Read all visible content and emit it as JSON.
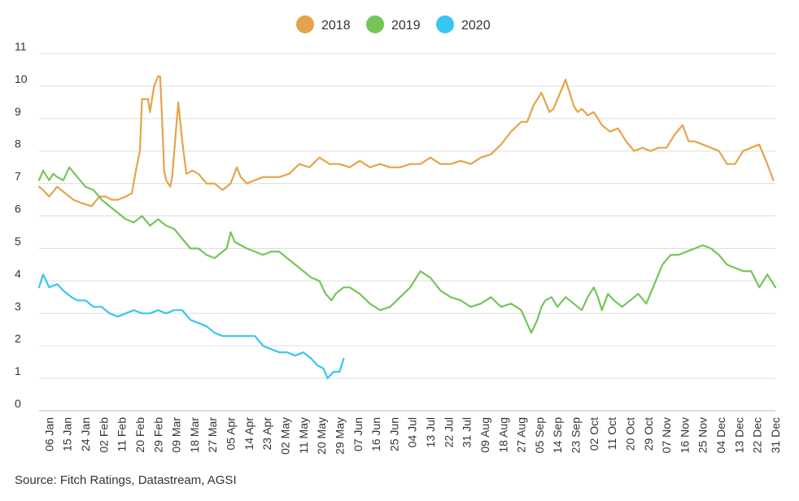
{
  "source": "Source: Fitch Ratings, Datastream, AGSI",
  "chart_data": {
    "type": "line",
    "title": "",
    "xlabel": "",
    "ylabel": "",
    "ylim": [
      0,
      11
    ],
    "yticks": [
      0,
      1,
      2,
      3,
      4,
      5,
      6,
      7,
      8,
      9,
      10,
      11
    ],
    "grid": true,
    "legend_position": "top-center",
    "x_tick_labels": [
      "06 Jan",
      "15 Jan",
      "24 Jan",
      "02 Feb",
      "11 Feb",
      "20 Feb",
      "29 Feb",
      "09 Mar",
      "18 Mar",
      "27 Mar",
      "05 Apr",
      "14 Apr",
      "23 Apr",
      "02 May",
      "11 May",
      "20 May",
      "29 May",
      "07 Jun",
      "16 Jun",
      "25 Jun",
      "04 Jul",
      "13 Jul",
      "22 Jul",
      "31 Jul",
      "09 Aug",
      "18 Aug",
      "27 Aug",
      "05 Sep",
      "14 Sep",
      "23 Sep",
      "02 Oct",
      "11 Oct",
      "20 Oct",
      "29 Oct",
      "07 Nov",
      "16 Nov",
      "25 Nov",
      "04 Dec",
      "13 Dec",
      "22 Dec",
      "31 Dec"
    ],
    "x_tick_days": [
      6,
      15,
      24,
      33,
      42,
      51,
      60,
      69,
      78,
      87,
      96,
      105,
      114,
      123,
      132,
      141,
      150,
      159,
      168,
      177,
      186,
      195,
      204,
      213,
      222,
      231,
      240,
      249,
      258,
      267,
      276,
      285,
      294,
      303,
      312,
      321,
      330,
      339,
      348,
      357,
      366
    ],
    "x_range": [
      1,
      366
    ],
    "series": [
      {
        "name": "2018",
        "color": "#e5a44c",
        "x": [
          1,
          3,
          6,
          10,
          14,
          18,
          22,
          27,
          31,
          34,
          37,
          40,
          44,
          47,
          49,
          51,
          52,
          55,
          56,
          58,
          60,
          61,
          62,
          63,
          64,
          65,
          66,
          67,
          70,
          71,
          72,
          74,
          77,
          80,
          84,
          88,
          92,
          96,
          99,
          101,
          104,
          108,
          112,
          116,
          120,
          125,
          130,
          135,
          140,
          145,
          150,
          155,
          160,
          165,
          170,
          175,
          180,
          185,
          190,
          195,
          200,
          205,
          210,
          215,
          220,
          225,
          230,
          235,
          240,
          243,
          246,
          250,
          254,
          256,
          258,
          260,
          262,
          264,
          266,
          268,
          270,
          273,
          276,
          280,
          284,
          288,
          292,
          296,
          300,
          304,
          308,
          312,
          316,
          320,
          323,
          326,
          330,
          334,
          338,
          342,
          346,
          350,
          354,
          358,
          362,
          365
        ],
        "values": [
          6.9,
          6.8,
          6.6,
          6.9,
          6.7,
          6.5,
          6.4,
          6.3,
          6.6,
          6.6,
          6.5,
          6.5,
          6.6,
          6.7,
          7.4,
          8.0,
          9.6,
          9.6,
          9.2,
          10.0,
          10.3,
          10.3,
          9.0,
          7.4,
          7.1,
          7.0,
          6.9,
          7.2,
          9.5,
          8.9,
          8.3,
          7.3,
          7.4,
          7.3,
          7.0,
          7.0,
          6.8,
          7.0,
          7.5,
          7.2,
          7.0,
          7.1,
          7.2,
          7.2,
          7.2,
          7.3,
          7.6,
          7.5,
          7.8,
          7.6,
          7.6,
          7.5,
          7.7,
          7.5,
          7.6,
          7.5,
          7.5,
          7.6,
          7.6,
          7.8,
          7.6,
          7.6,
          7.7,
          7.6,
          7.8,
          7.9,
          8.2,
          8.6,
          8.9,
          8.9,
          9.4,
          9.8,
          9.2,
          9.3,
          9.6,
          9.9,
          10.2,
          9.8,
          9.4,
          9.2,
          9.3,
          9.1,
          9.2,
          8.8,
          8.6,
          8.7,
          8.3,
          8.0,
          8.1,
          8.0,
          8.1,
          8.1,
          8.5,
          8.8,
          8.3,
          8.3,
          8.2,
          8.1,
          8.0,
          7.6,
          7.6,
          8.0,
          8.1,
          8.2,
          7.6,
          7.1
        ]
      },
      {
        "name": "2019",
        "color": "#74c65a",
        "x": [
          1,
          3,
          6,
          8,
          10,
          13,
          16,
          20,
          24,
          28,
          32,
          36,
          40,
          44,
          48,
          52,
          56,
          60,
          64,
          68,
          72,
          76,
          80,
          84,
          88,
          92,
          94,
          96,
          98,
          101,
          104,
          108,
          112,
          116,
          120,
          124,
          128,
          132,
          136,
          140,
          143,
          146,
          148,
          150,
          152,
          155,
          160,
          165,
          170,
          175,
          180,
          185,
          190,
          195,
          200,
          205,
          210,
          215,
          220,
          225,
          230,
          235,
          240,
          245,
          248,
          250,
          252,
          255,
          258,
          262,
          266,
          270,
          273,
          276,
          278,
          280,
          283,
          286,
          290,
          294,
          298,
          302,
          306,
          310,
          314,
          318,
          322,
          326,
          330,
          334,
          338,
          342,
          346,
          350,
          354,
          358,
          362,
          366
        ],
        "values": [
          7.1,
          7.4,
          7.1,
          7.3,
          7.2,
          7.1,
          7.5,
          7.2,
          6.9,
          6.8,
          6.5,
          6.3,
          6.1,
          5.9,
          5.8,
          6.0,
          5.7,
          5.9,
          5.7,
          5.6,
          5.3,
          5.0,
          5.0,
          4.8,
          4.7,
          4.9,
          5.0,
          5.5,
          5.2,
          5.1,
          5.0,
          4.9,
          4.8,
          4.9,
          4.9,
          4.7,
          4.5,
          4.3,
          4.1,
          4.0,
          3.6,
          3.4,
          3.6,
          3.7,
          3.8,
          3.8,
          3.6,
          3.3,
          3.1,
          3.2,
          3.5,
          3.8,
          4.3,
          4.1,
          3.7,
          3.5,
          3.4,
          3.2,
          3.3,
          3.5,
          3.2,
          3.3,
          3.1,
          2.4,
          2.8,
          3.2,
          3.4,
          3.5,
          3.2,
          3.5,
          3.3,
          3.1,
          3.5,
          3.8,
          3.5,
          3.1,
          3.6,
          3.4,
          3.2,
          3.4,
          3.6,
          3.3,
          3.9,
          4.5,
          4.8,
          4.8,
          4.9,
          5.0,
          5.1,
          5.0,
          4.8,
          4.5,
          4.4,
          4.3,
          4.3,
          3.8,
          4.2,
          3.8
        ]
      },
      {
        "name": "2020",
        "color": "#39c6f0",
        "x": [
          1,
          3,
          6,
          10,
          13,
          17,
          20,
          24,
          28,
          32,
          36,
          40,
          44,
          48,
          52,
          56,
          60,
          64,
          68,
          72,
          76,
          80,
          84,
          88,
          92,
          96,
          100,
          104,
          108,
          112,
          116,
          120,
          124,
          128,
          132,
          136,
          139,
          142,
          144,
          147,
          150,
          152
        ],
        "values": [
          3.8,
          4.2,
          3.8,
          3.9,
          3.7,
          3.5,
          3.4,
          3.4,
          3.2,
          3.2,
          3.0,
          2.9,
          3.0,
          3.1,
          3.0,
          3.0,
          3.1,
          3.0,
          3.1,
          3.1,
          2.8,
          2.7,
          2.6,
          2.4,
          2.3,
          2.3,
          2.3,
          2.3,
          2.3,
          2.0,
          1.9,
          1.8,
          1.8,
          1.7,
          1.8,
          1.6,
          1.4,
          1.3,
          1.0,
          1.2,
          1.2,
          1.6
        ]
      }
    ]
  }
}
